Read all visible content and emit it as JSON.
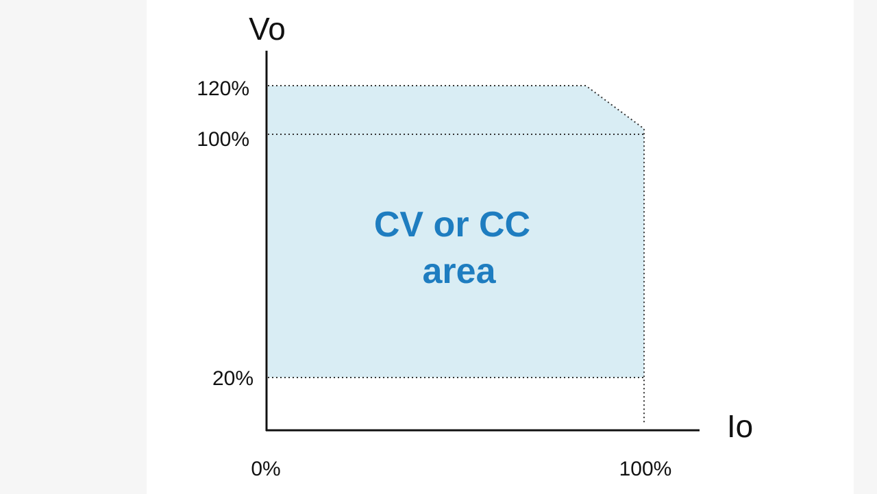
{
  "axes": {
    "y_label": "Vo",
    "x_label": "Io"
  },
  "y_ticks": [
    "120%",
    "100%",
    "20%"
  ],
  "x_ticks": [
    "0%",
    "100%"
  ],
  "region_label": [
    "CV or CC",
    "area"
  ]
}
